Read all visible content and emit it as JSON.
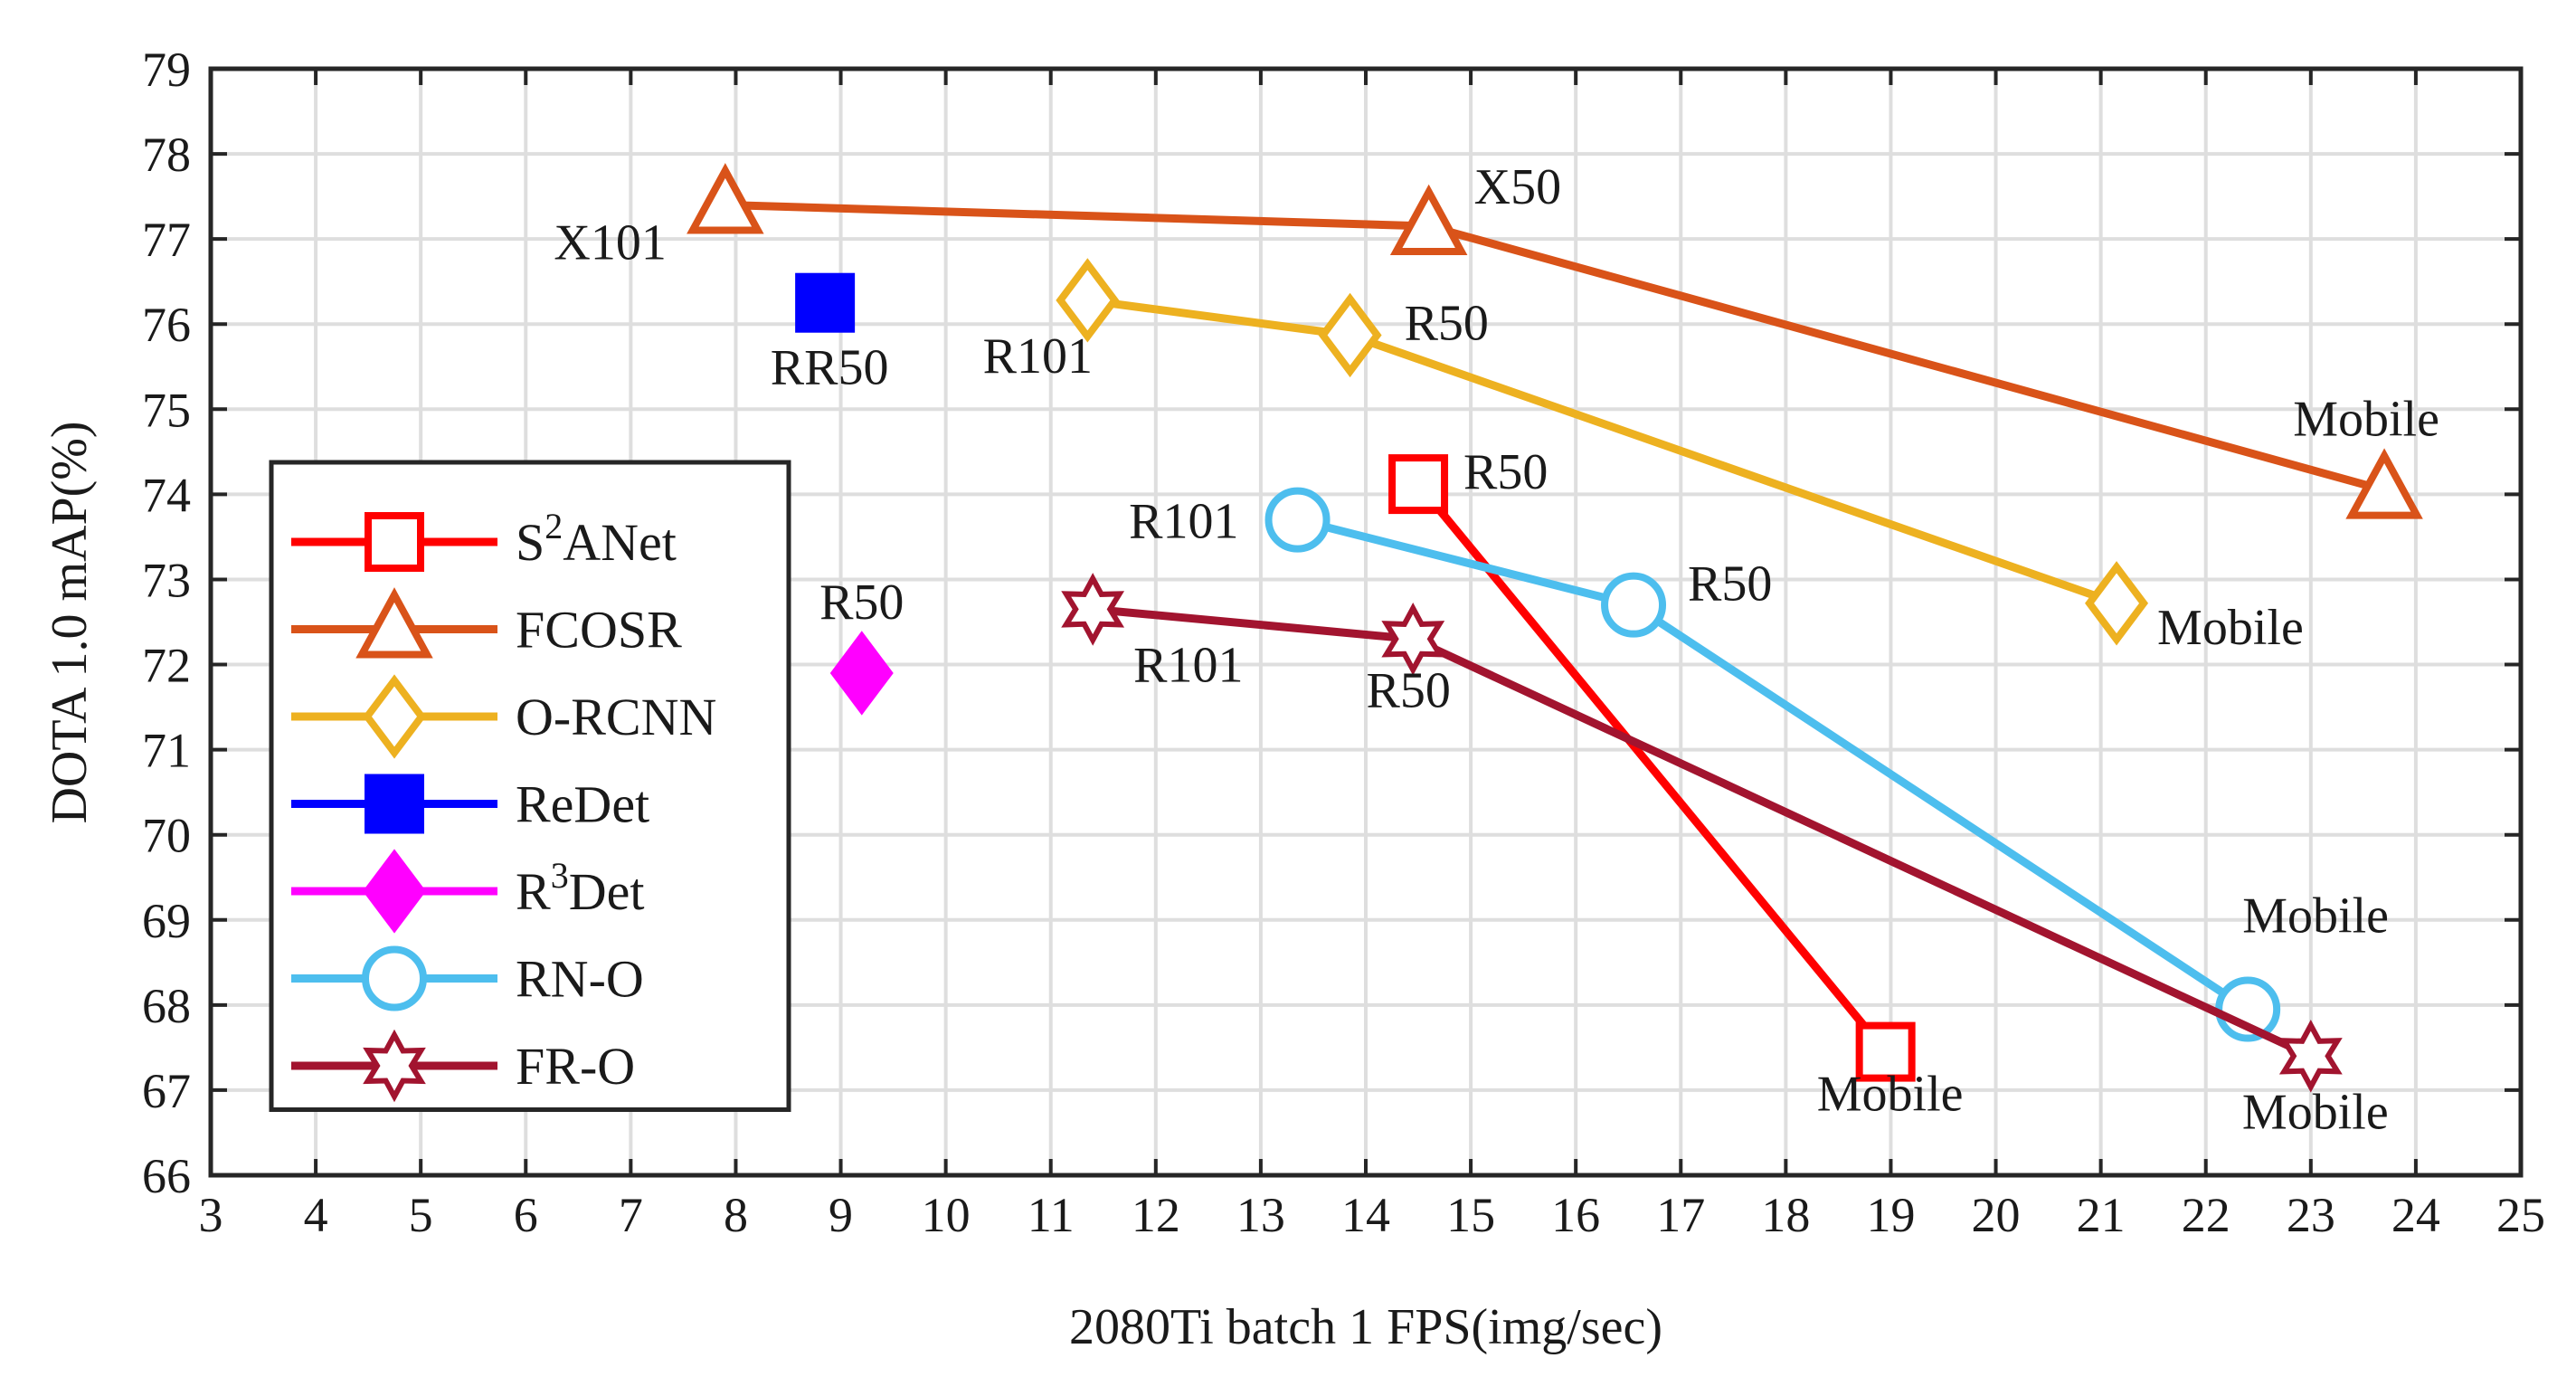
{
  "chart_data": {
    "type": "line",
    "xlabel": "2080Ti batch 1 FPS(img/sec)",
    "ylabel": "DOTA 1.0 mAP(%)",
    "xlim": [
      3,
      25
    ],
    "ylim": [
      66,
      79
    ],
    "xticks": [
      3,
      4,
      5,
      6,
      7,
      8,
      9,
      10,
      11,
      12,
      13,
      14,
      15,
      16,
      17,
      18,
      19,
      20,
      21,
      22,
      23,
      24,
      25
    ],
    "yticks": [
      66,
      67,
      68,
      69,
      70,
      71,
      72,
      73,
      74,
      75,
      76,
      77,
      78,
      79
    ],
    "grid": true,
    "legend_position": "bottom-left",
    "series": [
      {
        "name": "S2ANet",
        "legend_main": "S",
        "legend_sup": "2",
        "legend_tail": "ANet",
        "color": "#ff0000",
        "marker": "square-open",
        "points": [
          {
            "x": 14.5,
            "y": 74.12,
            "label": "R50"
          },
          {
            "x": 18.95,
            "y": 67.45,
            "label": "Mobile"
          }
        ]
      },
      {
        "name": "FCOSR",
        "legend_main": "FCOSR",
        "legend_sup": "",
        "legend_tail": "",
        "color": "#d95319",
        "marker": "triangle-open",
        "points": [
          {
            "x": 7.9,
            "y": 77.4,
            "label": "X101"
          },
          {
            "x": 14.6,
            "y": 77.15,
            "label": "X50"
          },
          {
            "x": 23.7,
            "y": 74.05,
            "label": "Mobile"
          }
        ]
      },
      {
        "name": "O-RCNN",
        "legend_main": "O-RCNN",
        "legend_sup": "",
        "legend_tail": "",
        "color": "#edb120",
        "marker": "diamond-open",
        "points": [
          {
            "x": 11.35,
            "y": 76.28,
            "label": "R101"
          },
          {
            "x": 13.85,
            "y": 75.87,
            "label": "R50"
          },
          {
            "x": 21.15,
            "y": 72.72,
            "label": "Mobile"
          }
        ]
      },
      {
        "name": "ReDet",
        "legend_main": "ReDet",
        "legend_sup": "",
        "legend_tail": "",
        "color": "#0000ff",
        "marker": "square-filled",
        "points": [
          {
            "x": 8.85,
            "y": 76.25,
            "label": "RR50"
          }
        ]
      },
      {
        "name": "R3Det",
        "legend_main": "R",
        "legend_sup": "3",
        "legend_tail": "Det",
        "color": "#ff00ff",
        "marker": "diamond-filled",
        "points": [
          {
            "x": 9.2,
            "y": 71.9,
            "label": "R50"
          }
        ]
      },
      {
        "name": "RN-O",
        "legend_main": "RN-O",
        "legend_sup": "",
        "legend_tail": "",
        "color": "#4dbeee",
        "marker": "circle-open",
        "points": [
          {
            "x": 13.35,
            "y": 73.7,
            "label": "R101"
          },
          {
            "x": 16.55,
            "y": 72.7,
            "label": "R50"
          },
          {
            "x": 22.4,
            "y": 67.95,
            "label": "Mobile"
          }
        ]
      },
      {
        "name": "FR-O",
        "legend_main": "FR-O",
        "legend_sup": "",
        "legend_tail": "",
        "color": "#a2142f",
        "marker": "hexagram-open",
        "points": [
          {
            "x": 11.4,
            "y": 72.65,
            "label": "R101"
          },
          {
            "x": 14.45,
            "y": 72.3,
            "label": "R50"
          },
          {
            "x": 23.0,
            "y": 67.4,
            "label": "Mobile"
          }
        ]
      }
    ]
  }
}
